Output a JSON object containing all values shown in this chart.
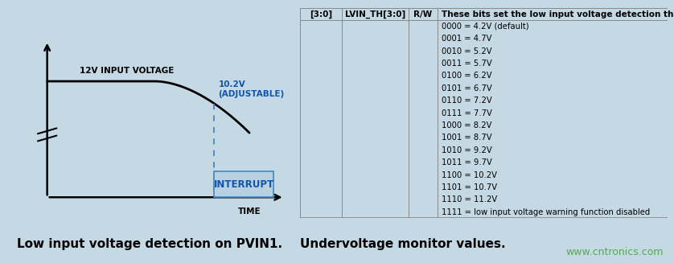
{
  "background_color": "#c5d9e5",
  "fig_width": 8.38,
  "fig_height": 3.27,
  "title_left": "Low input voltage detection on PVIN1.",
  "title_right": "Undervoltage monitor values.",
  "watermark": "www.cntronics.com",
  "waveform_label1": "12V INPUT VOLTAGE",
  "waveform_label2": "10.2V\n(ADJUSTABLE)",
  "waveform_label3": "INTERRUPT",
  "waveform_xlabel": "TIME",
  "table_col0_header": "[3:0]",
  "table_col1_header": "LVIN_TH[3:0]",
  "table_col2_header": "R/W",
  "table_col3_header": "These bits set the low input voltage detection threshold.",
  "table_rows": [
    "0000 = 4.2V (default)",
    "0001 = 4.7V",
    "0010 = 5.2V",
    "0011 = 5.7V",
    "0100 = 6.2V",
    "0101 = 6.7V",
    "0110 = 7.2V",
    "0111 = 7.7V",
    "1000 = 8.2V",
    "1001 = 8.7V",
    "1010 = 9.2V",
    "1011 = 9.7V",
    "1100 = 10.2V",
    "1101 = 10.7V",
    "1110 = 11.2V",
    "1111 = low input voltage warning function disabled"
  ],
  "line_color": "#000000",
  "dashed_color": "#4488bb",
  "interrupt_box_edge": "#4488bb",
  "interrupt_box_fill": "#b8d0e0",
  "interrupt_text_color": "#1155aa",
  "label2_color": "#1155aa",
  "watermark_color": "#55aa55",
  "title_fontsize": 11,
  "table_header_fontsize": 7.5,
  "table_row_fontsize": 7.2,
  "waveform_label_fontsize": 7.5,
  "watermark_fontsize": 9,
  "table_line_color": "#888888"
}
